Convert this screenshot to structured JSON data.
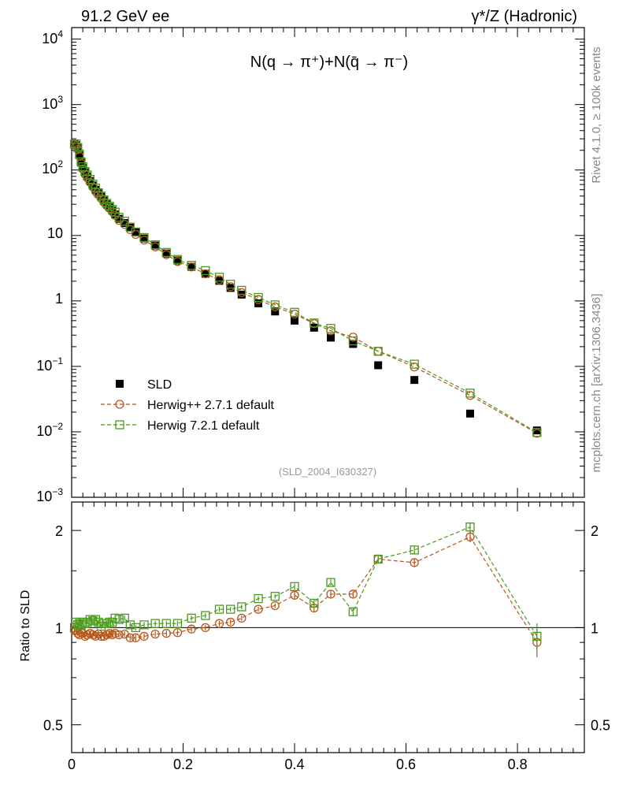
{
  "header": {
    "left_label": "91.2 GeV ee",
    "right_label": "γ*/Z (Hadronic)",
    "side_label_top": "Rivet 4.1.0, ≥ 100k events",
    "side_label_bottom": "mcplots.cern.ch [arXiv:1306.3436]",
    "watermark": "(SLD_2004_I630327)"
  },
  "chart_data": [
    {
      "panel": "main",
      "type": "scatter",
      "title": "N(q → π⁺)+N(q̄ → π⁻)",
      "yscale": "log",
      "xlim": [
        0,
        0.92
      ],
      "ylim": [
        0.001,
        15000
      ],
      "ytick_labels": [
        "10^4",
        "10^3",
        "10^2",
        "10",
        "1",
        "10^-1",
        "10^-2",
        "10^-3"
      ],
      "legend": {
        "position": "lower-left",
        "entries": [
          "SLD",
          "Herwig++ 2.7.1 default",
          "Herwig 7.2.1 default"
        ]
      },
      "x": [
        0.005,
        0.008,
        0.011,
        0.014,
        0.017,
        0.02,
        0.024,
        0.028,
        0.033,
        0.038,
        0.043,
        0.048,
        0.053,
        0.058,
        0.063,
        0.068,
        0.073,
        0.078,
        0.085,
        0.095,
        0.105,
        0.115,
        0.13,
        0.15,
        0.17,
        0.19,
        0.215,
        0.24,
        0.265,
        0.285,
        0.305,
        0.335,
        0.365,
        0.4,
        0.435,
        0.465,
        0.505,
        0.55,
        0.615,
        0.715,
        0.835
      ],
      "series": [
        {
          "name": "SLD",
          "color": "#000000",
          "marker": "filled-square",
          "values": [
            250,
            240,
            215,
            170,
            130,
            108,
            92,
            80,
            68,
            58,
            50,
            44,
            39,
            34,
            30,
            27,
            24,
            21,
            18,
            15.5,
            13.2,
            11.2,
            9,
            7,
            5.3,
            4.15,
            3.32,
            2.6,
            2.03,
            1.58,
            1.25,
            0.92,
            0.69,
            0.5,
            0.39,
            0.275,
            0.22,
            0.104,
            0.062,
            0.019,
            0.0105
          ]
        },
        {
          "name": "Herwig++ 2.7.1 default",
          "color": "#b5561b",
          "marker": "open-circle",
          "values": [
            245,
            235,
            206,
            162,
            126,
            104,
            86,
            76,
            65,
            55,
            47,
            42,
            36.7,
            32,
            28.6,
            26,
            23,
            20.2,
            17,
            14.8,
            12.3,
            10.4,
            8.5,
            6.7,
            5.1,
            4.0,
            3.3,
            2.6,
            2.1,
            1.65,
            1.34,
            1.05,
            0.81,
            0.63,
            0.45,
            0.35,
            0.28,
            0.17,
            0.098,
            0.036,
            0.0095
          ]
        },
        {
          "name": "Herwig 7.2.1 default",
          "color": "#4a9a1e",
          "marker": "open-square",
          "values": [
            248,
            250,
            220,
            175,
            133,
            112,
            95,
            84,
            72,
            61,
            53,
            45,
            40,
            35,
            31,
            28,
            25,
            22.7,
            19,
            16.5,
            13.4,
            11.3,
            9.3,
            7.2,
            5.5,
            4.3,
            3.5,
            2.9,
            2.3,
            1.8,
            1.45,
            1.13,
            0.87,
            0.67,
            0.46,
            0.38,
            0.245,
            0.17,
            0.108,
            0.039,
            0.0098
          ]
        }
      ]
    },
    {
      "panel": "ratio",
      "type": "scatter",
      "ylabel": "Ratio to SLD",
      "xlabel": "",
      "yscale": "log",
      "ylim": [
        0.41,
        2.45
      ],
      "ytick_labels": [
        "2",
        "1",
        "0.5"
      ],
      "xtick_labels": [
        "0",
        "0.2",
        "0.4",
        "0.6",
        "0.8"
      ],
      "x": [
        0.005,
        0.008,
        0.011,
        0.014,
        0.017,
        0.02,
        0.024,
        0.028,
        0.033,
        0.038,
        0.043,
        0.048,
        0.053,
        0.058,
        0.063,
        0.068,
        0.073,
        0.078,
        0.085,
        0.095,
        0.105,
        0.115,
        0.13,
        0.15,
        0.17,
        0.19,
        0.215,
        0.24,
        0.265,
        0.285,
        0.305,
        0.335,
        0.365,
        0.4,
        0.435,
        0.465,
        0.505,
        0.55,
        0.615,
        0.715,
        0.835
      ],
      "series": [
        {
          "name": "Herwig++ 2.7.1 default",
          "color": "#b5561b",
          "marker": "open-circle",
          "values": [
            0.98,
            0.98,
            0.96,
            0.95,
            0.97,
            0.96,
            0.94,
            0.95,
            0.96,
            0.95,
            0.94,
            0.955,
            0.94,
            0.94,
            0.95,
            0.96,
            0.95,
            0.96,
            0.95,
            0.955,
            0.93,
            0.93,
            0.94,
            0.955,
            0.96,
            0.965,
            0.99,
            1.0,
            1.03,
            1.04,
            1.07,
            1.14,
            1.17,
            1.26,
            1.15,
            1.27,
            1.27,
            1.63,
            1.59,
            1.91,
            0.9
          ],
          "errors": [
            0.02,
            0.02,
            0.02,
            0.02,
            0.02,
            0.02,
            0.02,
            0.02,
            0.02,
            0.02,
            0.02,
            0.02,
            0.02,
            0.02,
            0.02,
            0.02,
            0.02,
            0.02,
            0.02,
            0.02,
            0.02,
            0.02,
            0.02,
            0.02,
            0.02,
            0.02,
            0.02,
            0.02,
            0.02,
            0.02,
            0.02,
            0.02,
            0.02,
            0.03,
            0.03,
            0.03,
            0.03,
            0.05,
            0.05,
            0.07,
            0.09
          ]
        },
        {
          "name": "Herwig 7.2.1 default",
          "color": "#4a9a1e",
          "marker": "open-square",
          "values": [
            1.0,
            1.04,
            1.02,
            1.03,
            1.02,
            1.04,
            1.03,
            1.04,
            1.06,
            1.05,
            1.06,
            1.04,
            1.01,
            1.03,
            1.03,
            1.04,
            1.04,
            1.07,
            1.06,
            1.07,
            1.02,
            1.0,
            1.02,
            1.03,
            1.03,
            1.03,
            1.07,
            1.09,
            1.14,
            1.14,
            1.16,
            1.23,
            1.25,
            1.34,
            1.19,
            1.38,
            1.12,
            1.63,
            1.74,
            2.05,
            0.94
          ],
          "errors": [
            0.02,
            0.02,
            0.02,
            0.02,
            0.02,
            0.02,
            0.02,
            0.02,
            0.02,
            0.02,
            0.02,
            0.02,
            0.02,
            0.02,
            0.02,
            0.02,
            0.02,
            0.02,
            0.02,
            0.02,
            0.02,
            0.02,
            0.02,
            0.02,
            0.02,
            0.02,
            0.02,
            0.02,
            0.02,
            0.02,
            0.02,
            0.02,
            0.02,
            0.03,
            0.03,
            0.03,
            0.03,
            0.05,
            0.05,
            0.07,
            0.09
          ]
        }
      ]
    }
  ]
}
